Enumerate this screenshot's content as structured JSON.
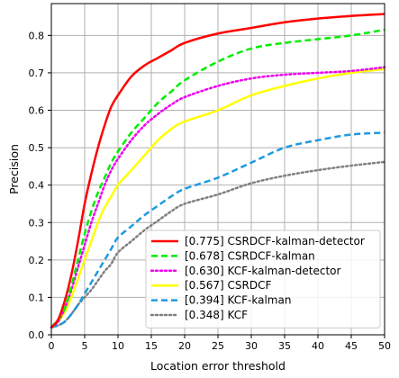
{
  "chart_data": {
    "type": "line",
    "xlabel": "Location error threshold",
    "ylabel": "Precision",
    "xlim": [
      0,
      50
    ],
    "ylim": [
      0,
      0.885
    ],
    "xticks": [
      0,
      5,
      10,
      15,
      20,
      25,
      30,
      35,
      40,
      45,
      50
    ],
    "yticks": [
      0.0,
      0.1,
      0.2,
      0.3,
      0.4,
      0.5,
      0.6,
      0.7,
      0.8
    ],
    "xtick_labels": [
      "0",
      "5",
      "10",
      "15",
      "20",
      "25",
      "30",
      "35",
      "40",
      "45",
      "50"
    ],
    "ytick_labels": [
      "0.0",
      "0.1",
      "0.2",
      "0.3",
      "0.4",
      "0.5",
      "0.6",
      "0.7",
      "0.8"
    ],
    "grid": true,
    "legend_position": "lower-right",
    "x": [
      0,
      1,
      2,
      3,
      4,
      5,
      6,
      7,
      8,
      9,
      10,
      12,
      14,
      16,
      18,
      20,
      25,
      30,
      35,
      40,
      45,
      50
    ],
    "series": [
      {
        "name": "[0.775] CSRDCF-kalman-detector",
        "color": "#ff0000",
        "dash": "solid",
        "values": [
          0.02,
          0.04,
          0.09,
          0.16,
          0.25,
          0.35,
          0.43,
          0.5,
          0.56,
          0.61,
          0.64,
          0.69,
          0.72,
          0.74,
          0.76,
          0.78,
          0.805,
          0.82,
          0.835,
          0.845,
          0.852,
          0.857
        ]
      },
      {
        "name": "[0.678] CSRDCF-kalman",
        "color": "#00ee00",
        "dash": "dashed",
        "values": [
          0.02,
          0.04,
          0.07,
          0.13,
          0.2,
          0.27,
          0.33,
          0.38,
          0.42,
          0.46,
          0.49,
          0.54,
          0.58,
          0.62,
          0.65,
          0.68,
          0.73,
          0.765,
          0.78,
          0.79,
          0.8,
          0.815
        ]
      },
      {
        "name": "[0.630] KCF-kalman-detector",
        "color": "#ee00ee",
        "dash": "dotted",
        "values": [
          0.02,
          0.035,
          0.07,
          0.12,
          0.18,
          0.24,
          0.3,
          0.35,
          0.4,
          0.44,
          0.47,
          0.52,
          0.56,
          0.59,
          0.615,
          0.635,
          0.665,
          0.685,
          0.695,
          0.7,
          0.705,
          0.715
        ]
      },
      {
        "name": "[0.567] CSRDCF",
        "color": "#ffff00",
        "dash": "solid",
        "values": [
          0.02,
          0.035,
          0.06,
          0.1,
          0.15,
          0.2,
          0.25,
          0.3,
          0.34,
          0.37,
          0.4,
          0.44,
          0.48,
          0.52,
          0.55,
          0.57,
          0.6,
          0.64,
          0.665,
          0.685,
          0.7,
          0.71
        ]
      },
      {
        "name": "[0.394] KCF-kalman",
        "color": "#1e9ae0",
        "dash": "dashed",
        "values": [
          0.02,
          0.025,
          0.035,
          0.055,
          0.08,
          0.11,
          0.14,
          0.17,
          0.2,
          0.23,
          0.26,
          0.29,
          0.32,
          0.345,
          0.37,
          0.39,
          0.42,
          0.46,
          0.5,
          0.52,
          0.535,
          0.54
        ]
      },
      {
        "name": "[0.348] KCF",
        "color": "#808080",
        "dash": "dotted",
        "values": [
          0.02,
          0.025,
          0.035,
          0.055,
          0.08,
          0.1,
          0.12,
          0.145,
          0.17,
          0.19,
          0.22,
          0.25,
          0.28,
          0.305,
          0.33,
          0.35,
          0.375,
          0.405,
          0.425,
          0.44,
          0.452,
          0.462
        ]
      }
    ]
  }
}
